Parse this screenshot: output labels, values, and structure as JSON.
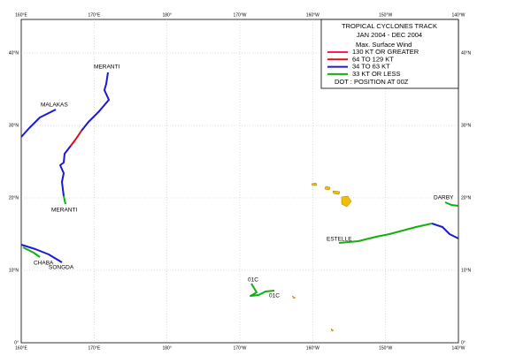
{
  "map": {
    "legend": {
      "title": "TROPICAL CYCLONES TRACK",
      "period": "JAN 2004  -  DEC 2004",
      "subtitle": "Max. Surface Wind",
      "entries": [
        {
          "label": "130 KT OR GREATER",
          "color": "#ff1a5a"
        },
        {
          "label": "64 TO 129 KT",
          "color": "#e01010"
        },
        {
          "label": "34 TO 63 KT",
          "color": "#1a1ad0"
        },
        {
          "label": "33 KT OR LESS",
          "color": "#10b010"
        }
      ],
      "note": "DOT : POSITION AT 00Z"
    },
    "lon_labels": [
      "160°E",
      "170°E",
      "180°",
      "170°W",
      "160°W",
      "150°W",
      "140°W"
    ],
    "lat_labels": [
      "0°",
      "10°N",
      "20°N",
      "30°N",
      "40°N"
    ],
    "storm_labels": [
      "MERANTI",
      "MALAKAS",
      "MERANTI",
      "CHABA",
      "SONGDA",
      "DARBY",
      "ESTELLE",
      "01C",
      "01C"
    ]
  }
}
